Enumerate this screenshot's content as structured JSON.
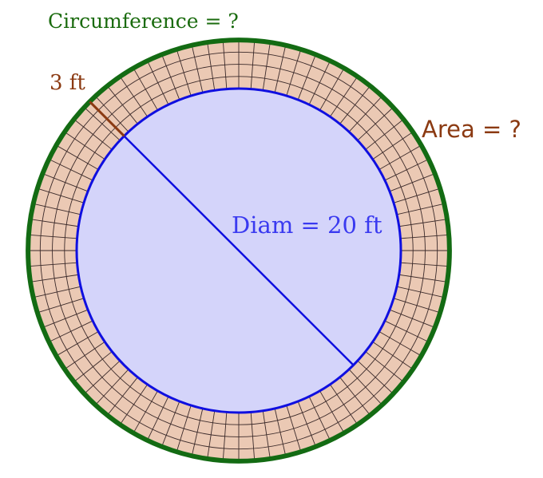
{
  "labels": {
    "circumference": "Circumference = ?",
    "path_width": "3 ft",
    "area": "Area = ?",
    "diameter": "Diam = 20 ft"
  },
  "figure": {
    "inner_diameter_ft": 20,
    "path_width_ft": 3,
    "radial_tiles": 4,
    "tiles_per_ring": 84
  },
  "colors": {
    "circumference": "#1a6b0e",
    "width": "#8b3a12",
    "area": "#8b3a12",
    "diameter": "#3a3af0",
    "inner_fill": "#d4d4fa",
    "inner_stroke": "#0f0fe0",
    "ring_fill": "#ebc9b4",
    "outer_stroke": "#136b13",
    "tile_lines": "#3b2a2a"
  }
}
